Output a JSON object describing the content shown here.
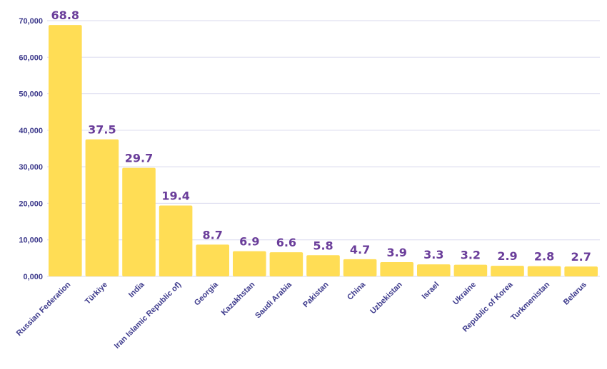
{
  "chart_data": {
    "type": "bar",
    "categories": [
      "Russian Federation",
      "Türkiye",
      "India",
      "Iran Islamic Republic of)",
      "Georgia",
      "Kazakhstan",
      "Saudi Arabia",
      "Pakistan",
      "China",
      "Uzbekistan",
      "Israel",
      "Ukraine",
      "Republic of Korea",
      "Turkmenistan",
      "Belarus"
    ],
    "values": [
      68800,
      37500,
      29700,
      19400,
      8700,
      6900,
      6600,
      5800,
      4700,
      3900,
      3300,
      3200,
      2900,
      2800,
      2700
    ],
    "data_labels": [
      "68.8",
      "37.5",
      "29.7",
      "19.4",
      "8.7",
      "6.9",
      "6.6",
      "5.8",
      "4.7",
      "3.9",
      "3.3",
      "3.2",
      "2.9",
      "2.8",
      "2.7"
    ],
    "yticks": [
      0,
      10000,
      20000,
      30000,
      40000,
      50000,
      60000,
      70000
    ],
    "ytick_labels": [
      "0,000",
      "10,000",
      "20,000",
      "30,000",
      "40,000",
      "50,000",
      "60,000",
      "70,000"
    ],
    "ylim": [
      0,
      70000
    ],
    "title": "",
    "xlabel": "",
    "ylabel": "",
    "grid": true,
    "bar_color": "#ffdd55",
    "label_color": "#6a3d9a",
    "tick_color": "#3d3a8c"
  }
}
